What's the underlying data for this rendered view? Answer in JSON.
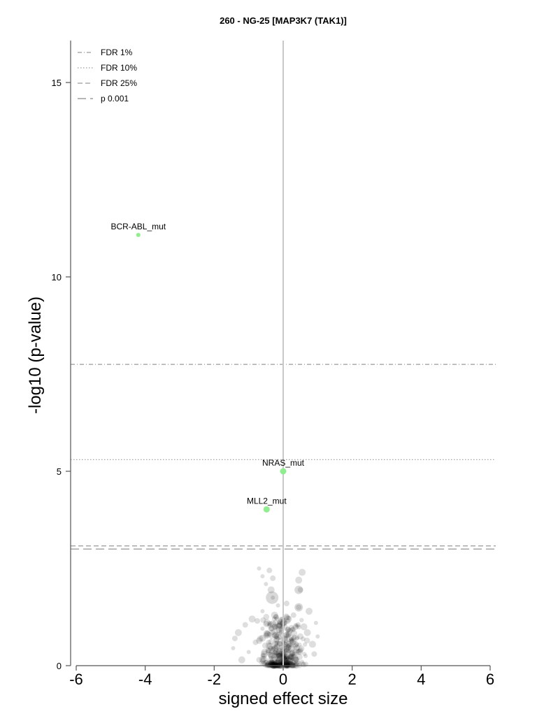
{
  "chart_data": {
    "type": "scatter",
    "title": "260 - NG-25 [MAP3K7 (TAK1)]",
    "xlabel": "signed effect size",
    "ylabel": "-log10 (p-value)",
    "xlim": [
      -6,
      6
    ],
    "ylim": [
      0,
      16
    ],
    "xticks": [
      -6,
      -4,
      -2,
      0,
      2,
      4,
      6
    ],
    "yticks": [
      0,
      5,
      10,
      15
    ],
    "grid": false,
    "legend_position": "top-left",
    "thresholds": [
      {
        "name": "FDR 1%",
        "y": 7.75,
        "style": "dashdot"
      },
      {
        "name": "FDR 10%",
        "y": 5.3,
        "style": "dotted"
      },
      {
        "name": "FDR 25%",
        "y": 3.08,
        "style": "dashed"
      },
      {
        "name": "p 0.001",
        "y": 3.0,
        "style": "longdash"
      }
    ],
    "highlighted_points": [
      {
        "label": "BCR-ABL_mut",
        "x": -4.2,
        "y": 11.08,
        "color": "#90ee90"
      },
      {
        "label": "NRAS_mut",
        "x": 0.0,
        "y": 5.0,
        "color": "#90ee90"
      },
      {
        "label": "MLL2_mut",
        "x": -0.48,
        "y": 4.02,
        "color": "#90ee90"
      }
    ],
    "background_points": [
      {
        "x": -0.7,
        "y": 2.5
      },
      {
        "x": -0.4,
        "y": 2.45
      },
      {
        "x": 0.55,
        "y": 2.4
      },
      {
        "x": -0.6,
        "y": 2.3
      },
      {
        "x": -0.3,
        "y": 2.25
      },
      {
        "x": 0.45,
        "y": 2.2
      },
      {
        "x": -0.5,
        "y": 2.1
      },
      {
        "x": 0.5,
        "y": 1.95
      },
      {
        "x": -0.35,
        "y": 1.95
      },
      {
        "x": -0.3,
        "y": 1.75
      },
      {
        "x": 0.45,
        "y": 1.5
      },
      {
        "x": 0.75,
        "y": 1.4
      },
      {
        "x": -0.15,
        "y": 1.55
      },
      {
        "x": 0.1,
        "y": 1.6
      },
      {
        "x": -0.9,
        "y": 1.2
      },
      {
        "x": 0.95,
        "y": 1.1
      },
      {
        "x": -1.1,
        "y": 1.05
      },
      {
        "x": -1.3,
        "y": 0.85
      },
      {
        "x": 1.0,
        "y": 0.75
      },
      {
        "x": -1.4,
        "y": 0.7
      },
      {
        "x": 0.85,
        "y": 0.55
      },
      {
        "x": -1.45,
        "y": 0.45
      },
      {
        "x": -0.8,
        "y": 0.6
      },
      {
        "x": 0.6,
        "y": 1.0
      },
      {
        "x": -0.6,
        "y": 0.95
      },
      {
        "x": 0.3,
        "y": 1.3
      },
      {
        "x": -0.25,
        "y": 1.3
      },
      {
        "x": -0.1,
        "y": 1.1
      },
      {
        "x": 0.2,
        "y": 0.9
      },
      {
        "x": -0.45,
        "y": 0.8
      },
      {
        "x": 0.4,
        "y": 0.7
      },
      {
        "x": -0.2,
        "y": 0.65
      },
      {
        "x": 0.15,
        "y": 0.5
      },
      {
        "x": -0.3,
        "y": 0.45
      },
      {
        "x": 0.25,
        "y": 0.3
      },
      {
        "x": -0.1,
        "y": 0.35
      },
      {
        "x": 0.05,
        "y": 0.2
      },
      {
        "x": -0.05,
        "y": 0.1
      },
      {
        "x": 0.35,
        "y": 0.15
      },
      {
        "x": -0.35,
        "y": 0.2
      },
      {
        "x": 0.5,
        "y": 0.4
      },
      {
        "x": -0.55,
        "y": 0.3
      },
      {
        "x": 0.65,
        "y": 0.25
      },
      {
        "x": -0.7,
        "y": 0.15
      },
      {
        "x": 0.1,
        "y": 0.05
      },
      {
        "x": -0.15,
        "y": 0.02
      },
      {
        "x": 0.3,
        "y": 0.08
      },
      {
        "x": -0.4,
        "y": 0.05
      },
      {
        "x": 0.0,
        "y": 0.6
      },
      {
        "x": -0.05,
        "y": 0.9
      },
      {
        "x": 0.15,
        "y": 1.2
      },
      {
        "x": -0.6,
        "y": 1.4
      },
      {
        "x": -0.75,
        "y": 1.15
      },
      {
        "x": 0.7,
        "y": 0.85
      },
      {
        "x": -1.0,
        "y": 0.35
      },
      {
        "x": 0.9,
        "y": 0.3
      },
      {
        "x": -1.2,
        "y": 0.15
      },
      {
        "x": 0.55,
        "y": 0.1
      },
      {
        "x": -0.25,
        "y": 1.0
      },
      {
        "x": 0.35,
        "y": 0.55
      }
    ]
  }
}
